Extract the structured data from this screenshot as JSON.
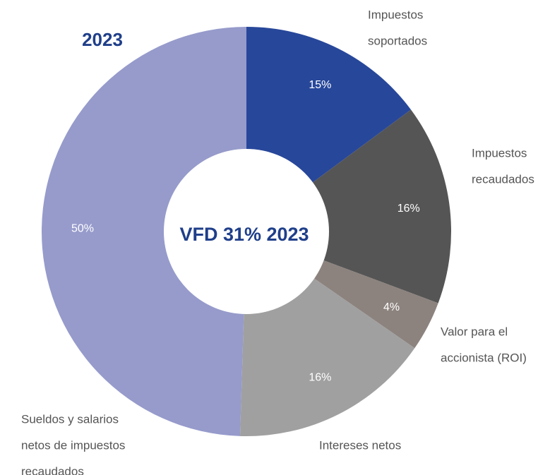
{
  "chart_data": {
    "type": "donut",
    "title": "2023",
    "center_label": "VFD 31% 2023",
    "categories": [
      [
        "Impuestos",
        "soportados"
      ],
      [
        "Impuestos",
        "recaudados"
      ],
      [
        "Valor para el",
        "accionista (ROI)"
      ],
      [
        "Intereses netos"
      ],
      [
        "Sueldos y salarios",
        "netos de impuestos",
        "recaudados"
      ]
    ],
    "values": [
      15,
      16,
      4,
      16,
      50
    ],
    "value_labels": [
      "15%",
      "16%",
      "4%",
      "16%",
      "50%"
    ],
    "colors": [
      "#27479a",
      "#555555",
      "#8c837e",
      "#a0a0a0",
      "#969bcb"
    ]
  }
}
